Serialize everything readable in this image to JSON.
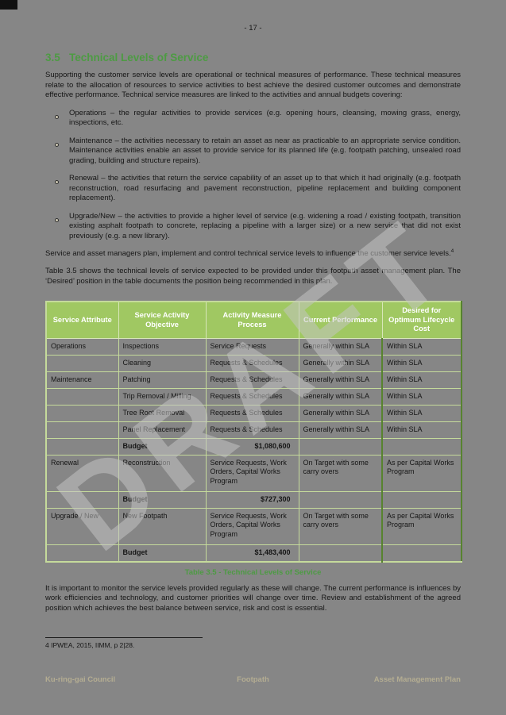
{
  "page_number": "- 17 -",
  "watermark": "DRAFT",
  "colors": {
    "page_bg": "#868686",
    "accent_green": "#4d9b43",
    "header_bg": "#a0c862",
    "grid": "#c5da9b",
    "dark_green": "#57832f",
    "footer_text": "#b4ad92",
    "wm": "#c6c6c6"
  },
  "section": {
    "number": "3.5",
    "title": "Technical Levels of Service"
  },
  "content": {
    "para1": "Supporting the customer service levels are operational or technical measures of performance. These technical measures relate to the allocation of resources to service activities to best achieve the desired customer outcomes and demonstrate effective performance. Technical service measures are linked to the activities and annual budgets covering:",
    "bullets": [
      "Operations – the regular activities to provide services (e.g. opening hours, cleansing, mowing grass, energy, inspections, etc.",
      "Maintenance – the activities necessary to retain an asset as near as practicable to an appropriate service condition. Maintenance activities enable an asset to provide service for its planned life (e.g. footpath patching, unsealed road grading, building and structure repairs).",
      "Renewal – the activities that return the service capability of an asset up to that which it had originally (e.g. footpath reconstruction, road resurfacing and pavement reconstruction, pipeline replacement and building component replacement).",
      "Upgrade/New – the activities to provide a higher level of service (e.g. widening a road / existing footpath, transition existing asphalt footpath to concrete, replacing a pipeline with a larger size) or a new service that did not exist previously (e.g. a new library)."
    ],
    "para2": "Service and asset managers plan, implement and control technical service levels to influence the customer service levels.",
    "footnote_ref": "4",
    "para3": "Table 3.5 shows the technical levels of service expected to be provided under this footpath asset management plan. The ‘Desired’ position in the table documents the position being recommended in this plan.",
    "para4": "It is important to monitor the service levels provided regularly as these will change. The current performance is influences by work efficiencies and technology, and customer priorities will change over time. Review and establishment of the agreed position which achieves the best balance between service, risk and cost is essential."
  },
  "table": {
    "caption": "Table 3.5 - Technical Levels of Service",
    "headers": [
      "Service Attribute",
      "Service Activity Objective",
      "Activity Measure Process",
      "Current Performance",
      "Desired for Optimum Lifecycle Cost"
    ],
    "rows": [
      [
        "Operations",
        "Inspections",
        "Service Requests",
        "Generally within SLA",
        "Within SLA"
      ],
      [
        "",
        "Cleaning",
        "Requests & Schedules",
        "Generally within SLA",
        "Within SLA"
      ],
      [
        "Maintenance",
        "Patching",
        "Requests & Schedules",
        "Generally within SLA",
        "Within SLA"
      ],
      [
        "",
        "Trip Removal / Milling",
        "Requests & Schedules",
        "Generally within SLA",
        "Within SLA"
      ],
      [
        "",
        "Tree Root Removal",
        "Requests & Schedules",
        "Generally within SLA",
        "Within SLA"
      ],
      [
        "",
        "Panel Replacement",
        "Requests & Schedules",
        "Generally within SLA",
        "Within SLA"
      ],
      [
        "",
        "Budget",
        "$1,080,600",
        "",
        ""
      ],
      [
        "Renewal",
        "Reconstruction",
        "Service Requests, Work Orders, Capital Works Program",
        "On Target with some carry overs",
        "As per Capital Works Program"
      ],
      [
        "",
        "Budget",
        "$727,300",
        "",
        ""
      ],
      [
        "Upgrade / New",
        "New Footpath",
        "Service Requests, Work Orders, Capital Works Program",
        "On Target with some carry overs",
        "As per Capital Works Program"
      ],
      [
        "",
        "Budget",
        "$1,483,400",
        "",
        ""
      ]
    ]
  },
  "footnote": "4 IPWEA, 2015, IIMM, p 2|28.",
  "footer": {
    "left": "Ku-ring-gai Council",
    "center": "Footpath",
    "right": "Asset Management Plan"
  }
}
